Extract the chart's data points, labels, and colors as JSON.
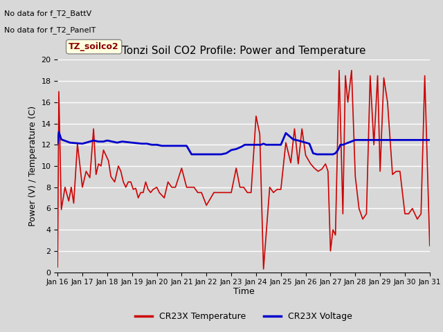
{
  "title": "Tonzi Soil CO2 Profile: Power and Temperature",
  "ylabel": "Power (V) / Temperature (C)",
  "xlabel": "Time",
  "ylim": [
    0,
    20
  ],
  "xlim": [
    0,
    15
  ],
  "top_text_line1": "No data for f_T2_BattV",
  "top_text_line2": "No data for f_T2_PanelT",
  "legend_label1": "CR23X Temperature",
  "legend_label2": "CR23X Voltage",
  "label_box": "TZ_soilco2",
  "xtick_labels": [
    "Jan 16",
    "Jan 17",
    "Jan 18",
    "Jan 19",
    "Jan 20",
    "Jan 21",
    "Jan 22",
    "Jan 23",
    "Jan 24",
    "Jan 25",
    "Jan 26",
    "Jan 27",
    "Jan 28",
    "Jan 29",
    "Jan 30",
    "Jan 31"
  ],
  "ytick_values": [
    0,
    2,
    4,
    6,
    8,
    10,
    12,
    14,
    16,
    18,
    20
  ],
  "red_x": [
    0.0,
    0.05,
    0.15,
    0.3,
    0.45,
    0.55,
    0.65,
    0.8,
    1.0,
    1.15,
    1.3,
    1.45,
    1.55,
    1.65,
    1.75,
    1.85,
    1.95,
    2.05,
    2.15,
    2.3,
    2.45,
    2.55,
    2.65,
    2.75,
    2.85,
    2.95,
    3.05,
    3.15,
    3.25,
    3.35,
    3.45,
    3.55,
    3.65,
    3.75,
    3.85,
    4.0,
    4.1,
    4.3,
    4.45,
    4.6,
    4.75,
    5.0,
    5.2,
    5.35,
    5.5,
    5.65,
    5.8,
    6.0,
    6.3,
    6.5,
    7.0,
    7.2,
    7.35,
    7.5,
    7.65,
    7.8,
    8.0,
    8.15,
    8.3,
    8.55,
    8.7,
    8.85,
    9.0,
    9.2,
    9.4,
    9.55,
    9.7,
    9.85,
    10.0,
    10.2,
    10.35,
    10.5,
    10.65,
    10.8,
    10.9,
    11.0,
    11.1,
    11.2,
    11.35,
    11.5,
    11.6,
    11.7,
    11.85,
    12.0,
    12.15,
    12.3,
    12.45,
    12.6,
    12.75,
    12.9,
    13.0,
    13.15,
    13.3,
    13.5,
    13.65,
    13.8,
    14.0,
    14.15,
    14.3,
    14.5,
    14.65,
    14.8,
    15.0
  ],
  "red_y": [
    0.5,
    17.0,
    5.9,
    8.0,
    6.7,
    8.0,
    6.5,
    12.1,
    8.0,
    9.5,
    8.9,
    13.5,
    9.2,
    10.2,
    10.0,
    11.5,
    11.0,
    10.5,
    9.0,
    8.5,
    10.0,
    9.5,
    8.5,
    8.0,
    8.5,
    8.5,
    7.8,
    7.9,
    7.0,
    7.5,
    7.5,
    8.5,
    7.8,
    7.5,
    7.8,
    8.0,
    7.5,
    7.0,
    8.5,
    8.0,
    8.0,
    9.8,
    8.0,
    8.0,
    8.0,
    7.5,
    7.5,
    6.3,
    7.5,
    7.5,
    7.5,
    9.8,
    8.0,
    8.0,
    7.5,
    7.5,
    14.7,
    13.0,
    0.3,
    8.0,
    7.5,
    7.8,
    7.8,
    12.2,
    10.3,
    13.5,
    10.2,
    13.5,
    11.0,
    10.2,
    9.8,
    9.5,
    9.7,
    10.2,
    9.5,
    2.0,
    4.0,
    3.5,
    19.0,
    5.5,
    18.5,
    16.0,
    19.0,
    9.0,
    6.0,
    5.0,
    5.5,
    18.5,
    12.0,
    18.5,
    9.5,
    18.3,
    16.0,
    9.2,
    9.5,
    9.5,
    5.5,
    5.5,
    6.0,
    5.0,
    5.5,
    18.5,
    2.5
  ],
  "blue_x": [
    0.0,
    0.05,
    0.15,
    0.5,
    1.0,
    1.15,
    1.3,
    1.45,
    1.65,
    1.85,
    2.0,
    2.2,
    2.4,
    2.6,
    3.0,
    3.2,
    3.4,
    3.6,
    3.8,
    4.0,
    4.2,
    4.4,
    4.6,
    4.8,
    5.0,
    5.2,
    5.4,
    5.6,
    5.8,
    6.0,
    6.2,
    6.4,
    6.6,
    6.8,
    7.0,
    7.2,
    7.4,
    7.55,
    7.7,
    7.85,
    8.0,
    8.1,
    8.2,
    8.3,
    8.4,
    8.5,
    8.6,
    9.0,
    9.2,
    9.5,
    9.7,
    9.85,
    10.0,
    10.15,
    10.3,
    10.45,
    10.6,
    10.8,
    11.0,
    11.1,
    11.2,
    11.3,
    11.4,
    11.5,
    12.0,
    12.15,
    12.3,
    12.5,
    13.0,
    13.5,
    14.0,
    14.5,
    15.0
  ],
  "blue_y": [
    12.1,
    13.2,
    12.5,
    12.2,
    12.1,
    12.2,
    12.3,
    12.4,
    12.3,
    12.3,
    12.4,
    12.3,
    12.2,
    12.3,
    12.2,
    12.15,
    12.1,
    12.1,
    12.0,
    12.0,
    11.9,
    11.9,
    11.9,
    11.9,
    11.9,
    11.9,
    11.1,
    11.1,
    11.1,
    11.1,
    11.1,
    11.1,
    11.1,
    11.2,
    11.5,
    11.6,
    11.8,
    12.0,
    12.0,
    12.0,
    12.0,
    12.0,
    12.0,
    12.1,
    12.0,
    12.0,
    12.0,
    12.0,
    13.1,
    12.5,
    12.4,
    12.3,
    12.2,
    12.1,
    11.2,
    11.1,
    11.1,
    11.1,
    11.1,
    11.1,
    11.2,
    11.5,
    12.0,
    12.0,
    12.45,
    12.45,
    12.45,
    12.45,
    12.45,
    12.45,
    12.45,
    12.45,
    12.45
  ],
  "bg_color": "#d8d8d8",
  "plot_bg_color": "#d8d8d8",
  "red_color": "#cc0000",
  "blue_color": "#0000cc",
  "grid_color": "#ffffff"
}
